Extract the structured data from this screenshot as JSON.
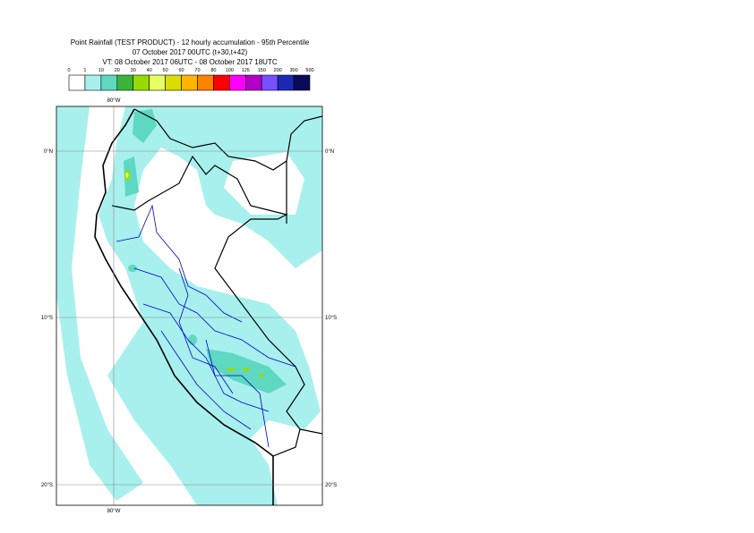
{
  "header": {
    "title": "Point Rainfall (TEST PRODUCT) - 12 hourly accumulation - 95th Percentile",
    "base_time": "07 October 2017 00UTC (t+30,t+42)",
    "valid_time": "VT: 08 October 2017 06UTC - 08 October 2017 18UTC"
  },
  "legend": {
    "labels": [
      0,
      1,
      10,
      20,
      30,
      40,
      50,
      60,
      70,
      80,
      100,
      125,
      150,
      200,
      300,
      500
    ],
    "colors": [
      "#ffffff",
      "#a8f0ee",
      "#5ed8c0",
      "#3cb43c",
      "#96dc00",
      "#e8ff64",
      "#dcdc00",
      "#ffb400",
      "#ff8200",
      "#ff0000",
      "#ff00ff",
      "#b400c8",
      "#7850ff",
      "#1e28b4",
      "#0a0a5a"
    ]
  },
  "map": {
    "lon_labels": [
      "80°W"
    ],
    "lat_labels": [
      "0°N",
      "10°S",
      "20°S"
    ]
  }
}
